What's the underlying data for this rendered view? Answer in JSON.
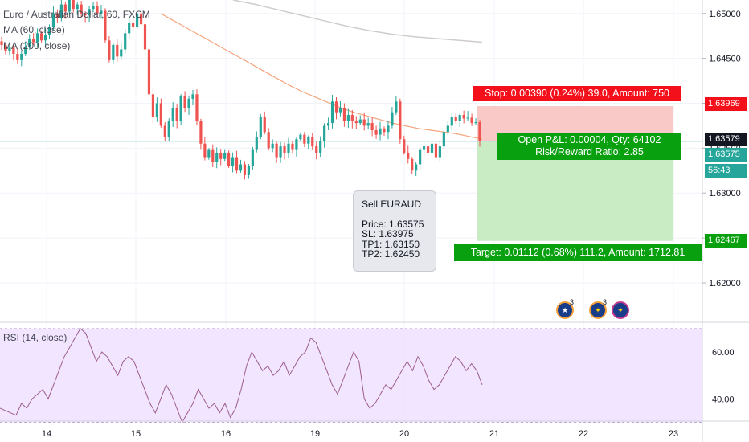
{
  "legend": {
    "symbol": "Euro / Australian Dollar, 60, FXCM",
    "ma60": "MA (60, close)",
    "ma200": "MA (200, close)",
    "rsi": "RSI (14, close)"
  },
  "colors": {
    "up": "#26a69a",
    "down": "#ef5350",
    "ma60": "#f4a57d",
    "ma200": "#d1cccc",
    "stop_fill": "#f8c9c7",
    "target_fill": "#c9ecc5",
    "stop_label": "#f3101a",
    "target_label": "#08a00f",
    "rsi_line": "#9c5c8e",
    "rsi_band": "#eedcff"
  },
  "price_axis": {
    "ticks": [
      "1.65000",
      "1.64500",
      "1.64000",
      "1.63500",
      "1.63000",
      "1.62500",
      "1.62000"
    ],
    "labels": {
      "stop": "1.63969",
      "current": "1.63579",
      "entry": "1.63575",
      "countdown": "56:43",
      "target": "1.62467"
    }
  },
  "rsi_axis": {
    "ticks": [
      "60.00",
      "40.00"
    ]
  },
  "time_axis": {
    "labels": [
      "14",
      "15",
      "16",
      "19",
      "20",
      "21",
      "22",
      "23"
    ]
  },
  "position": {
    "stop_text": "Stop: 0.00390 (0.24%) 39.0, Amount: 750",
    "open_line1": "Open P&L: 0.00004, Qty: 64102",
    "open_line2": "Risk/Reward Ratio: 2.85",
    "target_text": "Target: 0.01112 (0.68%) 111.2, Amount: 1712.81"
  },
  "note": {
    "title": "Sell EURAUD",
    "price": "Price: 1.63575",
    "sl": "SL: 1.63975",
    "tp1": "TP1: 1.63150",
    "tp2": "TP2: 1.62450"
  },
  "events": [
    {
      "icon": "australia-flag-icon",
      "count": "3"
    },
    {
      "icon": "europe-flag-icon",
      "count": "3"
    },
    {
      "icon": "europe-flag-icon",
      "count": ""
    }
  ],
  "chart_data": {
    "type": "candlestick",
    "title": "Euro / Australian Dollar, 60, FXCM",
    "ylim": [
      1.6157,
      1.6515
    ],
    "close": [
      1.6465,
      1.6458,
      1.6462,
      1.6455,
      1.6448,
      1.6455,
      1.6463,
      1.6472,
      1.6468,
      1.6478,
      1.647,
      1.6476,
      1.6485,
      1.65,
      1.6495,
      1.651,
      1.6502,
      1.6515,
      1.6505,
      1.651,
      1.65,
      1.6498,
      1.6505,
      1.6508,
      1.65,
      1.6503,
      1.647,
      1.6448,
      1.6465,
      1.6452,
      1.646,
      1.6478,
      1.649,
      1.6485,
      1.65,
      1.6488,
      1.646,
      1.641,
      1.6385,
      1.64,
      1.6375,
      1.6362,
      1.638,
      1.6395,
      1.638,
      1.6408,
      1.6395,
      1.6405,
      1.641,
      1.638,
      1.6355,
      1.634,
      1.6348,
      1.6335,
      1.6345,
      1.6338,
      1.6345,
      1.633,
      1.634,
      1.6325,
      1.6332,
      1.632,
      1.633,
      1.6348,
      1.6362,
      1.6385,
      1.6368,
      1.635,
      1.6355,
      1.634,
      1.6352,
      1.6345,
      1.6355,
      1.6348,
      1.636,
      1.6365,
      1.6355,
      1.6362,
      1.6352,
      1.6345,
      1.6358,
      1.6375,
      1.6378,
      1.6402,
      1.639,
      1.6395,
      1.638,
      1.6387,
      1.638,
      1.6378,
      1.6382,
      1.6375,
      1.6378,
      1.637,
      1.6365,
      1.6372,
      1.6368,
      1.6375,
      1.639,
      1.6402,
      1.636,
      1.6345,
      1.6338,
      1.6325,
      1.6332,
      1.6348,
      1.6352,
      1.6345,
      1.6355,
      1.634,
      1.6352,
      1.6368,
      1.6375,
      1.6385,
      1.638,
      1.6387,
      1.6383,
      1.6384,
      1.6378,
      1.6379,
      1.6358
    ],
    "ma60": [
      1.65,
      1.6492,
      1.6484,
      1.6476,
      1.6468,
      1.646,
      1.6452,
      1.6444,
      1.6436,
      1.6428,
      1.642,
      1.6413,
      1.6407,
      1.6401,
      1.6395,
      1.639,
      1.6386,
      1.6382,
      1.6378,
      1.6375,
      1.6372,
      1.637,
      1.6368,
      1.6366,
      1.6363,
      1.636
    ],
    "ma200": [
      1.6515,
      1.651,
      1.6504,
      1.6498,
      1.6492,
      1.6486,
      1.6481,
      1.6477,
      1.6474,
      1.6472,
      1.647,
      1.6468
    ],
    "rsi": [
      36,
      35,
      34,
      33,
      38,
      36,
      40,
      42,
      44,
      40,
      46,
      52,
      58,
      62,
      66,
      70,
      68,
      62,
      56,
      60,
      58,
      54,
      50,
      56,
      58,
      56,
      50,
      44,
      38,
      34,
      40,
      46,
      42,
      36,
      30,
      34,
      38,
      44,
      40,
      36,
      38,
      34,
      38,
      32,
      36,
      44,
      54,
      60,
      56,
      52,
      54,
      50,
      52,
      56,
      50,
      54,
      58,
      60,
      66,
      64,
      58,
      52,
      46,
      42,
      48,
      54,
      60,
      56,
      40,
      36,
      38,
      42,
      46,
      44,
      48,
      52,
      56,
      52,
      58,
      54,
      48,
      44,
      46,
      50,
      54,
      58,
      56,
      52,
      55,
      52,
      46
    ],
    "rsi_ylim": [
      30.5,
      72
    ],
    "rsi_bands": [
      30,
      70
    ],
    "short_position": {
      "entry": 1.63575,
      "stop": 1.63969,
      "target": 1.62467
    }
  }
}
